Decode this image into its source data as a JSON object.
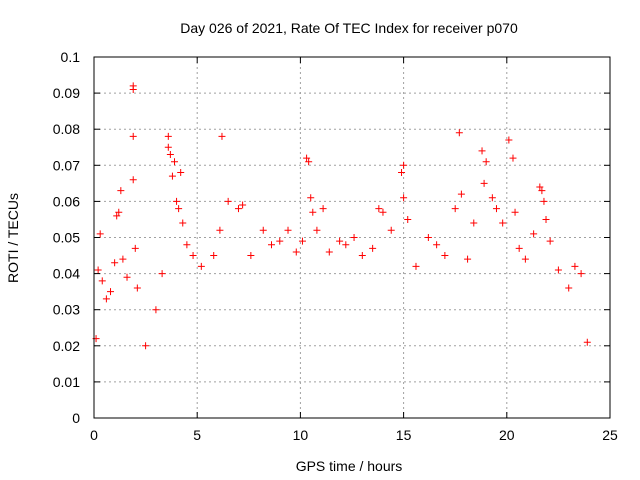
{
  "chart_data": {
    "type": "scatter",
    "title": "Day 026 of 2021, Rate Of TEC Index for receiver p070",
    "xlabel": "GPS time / hours",
    "ylabel": "ROTI / TECUs",
    "xlim": [
      0,
      25
    ],
    "ylim": [
      0,
      0.1
    ],
    "xticks": [
      "0",
      "5",
      "10",
      "15",
      "20",
      "25"
    ],
    "yticks": [
      "0",
      "0.01",
      "0.02",
      "0.03",
      "0.04",
      "0.05",
      "0.06",
      "0.07",
      "0.08",
      "0.09",
      "0.1"
    ],
    "grid": true,
    "legend": "none",
    "marker": "+",
    "series_color": "#ff0000",
    "series": [
      {
        "points": [
          [
            0.1,
            0.022
          ],
          [
            0.2,
            0.041
          ],
          [
            0.3,
            0.051
          ],
          [
            0.4,
            0.038
          ],
          [
            0.6,
            0.033
          ],
          [
            0.8,
            0.035
          ],
          [
            1.0,
            0.043
          ],
          [
            1.1,
            0.056
          ],
          [
            1.2,
            0.057
          ],
          [
            1.3,
            0.063
          ],
          [
            1.4,
            0.044
          ],
          [
            1.6,
            0.039
          ],
          [
            1.9,
            0.092
          ],
          [
            1.9,
            0.091
          ],
          [
            1.9,
            0.078
          ],
          [
            1.9,
            0.066
          ],
          [
            2.0,
            0.047
          ],
          [
            2.1,
            0.036
          ],
          [
            2.5,
            0.02
          ],
          [
            3.0,
            0.03
          ],
          [
            3.3,
            0.04
          ],
          [
            3.6,
            0.078
          ],
          [
            3.6,
            0.075
          ],
          [
            3.7,
            0.073
          ],
          [
            3.8,
            0.067
          ],
          [
            3.9,
            0.071
          ],
          [
            4.0,
            0.06
          ],
          [
            4.1,
            0.058
          ],
          [
            4.2,
            0.068
          ],
          [
            4.3,
            0.054
          ],
          [
            4.5,
            0.048
          ],
          [
            4.8,
            0.045
          ],
          [
            5.2,
            0.042
          ],
          [
            5.8,
            0.045
          ],
          [
            6.1,
            0.052
          ],
          [
            6.2,
            0.078
          ],
          [
            6.5,
            0.06
          ],
          [
            7.0,
            0.058
          ],
          [
            7.2,
            0.059
          ],
          [
            7.6,
            0.045
          ],
          [
            8.2,
            0.052
          ],
          [
            8.6,
            0.048
          ],
          [
            9.0,
            0.049
          ],
          [
            9.4,
            0.052
          ],
          [
            9.8,
            0.046
          ],
          [
            10.1,
            0.049
          ],
          [
            10.3,
            0.072
          ],
          [
            10.4,
            0.071
          ],
          [
            10.5,
            0.061
          ],
          [
            10.6,
            0.057
          ],
          [
            10.8,
            0.052
          ],
          [
            11.1,
            0.058
          ],
          [
            11.4,
            0.046
          ],
          [
            11.9,
            0.049
          ],
          [
            12.2,
            0.048
          ],
          [
            12.6,
            0.05
          ],
          [
            13.0,
            0.045
          ],
          [
            13.5,
            0.047
          ],
          [
            13.8,
            0.058
          ],
          [
            14.0,
            0.057
          ],
          [
            14.4,
            0.052
          ],
          [
            14.9,
            0.068
          ],
          [
            15.0,
            0.07
          ],
          [
            15.0,
            0.061
          ],
          [
            15.2,
            0.055
          ],
          [
            15.6,
            0.042
          ],
          [
            16.2,
            0.05
          ],
          [
            16.6,
            0.048
          ],
          [
            17.0,
            0.045
          ],
          [
            17.5,
            0.058
          ],
          [
            17.7,
            0.079
          ],
          [
            17.8,
            0.062
          ],
          [
            18.1,
            0.044
          ],
          [
            18.4,
            0.054
          ],
          [
            18.8,
            0.074
          ],
          [
            18.9,
            0.065
          ],
          [
            19.0,
            0.071
          ],
          [
            19.3,
            0.061
          ],
          [
            19.5,
            0.058
          ],
          [
            19.8,
            0.054
          ],
          [
            20.1,
            0.077
          ],
          [
            20.3,
            0.072
          ],
          [
            20.4,
            0.057
          ],
          [
            20.6,
            0.047
          ],
          [
            20.9,
            0.044
          ],
          [
            21.3,
            0.051
          ],
          [
            21.6,
            0.064
          ],
          [
            21.7,
            0.063
          ],
          [
            21.8,
            0.06
          ],
          [
            21.9,
            0.055
          ],
          [
            22.1,
            0.049
          ],
          [
            22.5,
            0.041
          ],
          [
            23.0,
            0.036
          ],
          [
            23.3,
            0.042
          ],
          [
            23.6,
            0.04
          ],
          [
            23.9,
            0.021
          ]
        ]
      }
    ]
  }
}
